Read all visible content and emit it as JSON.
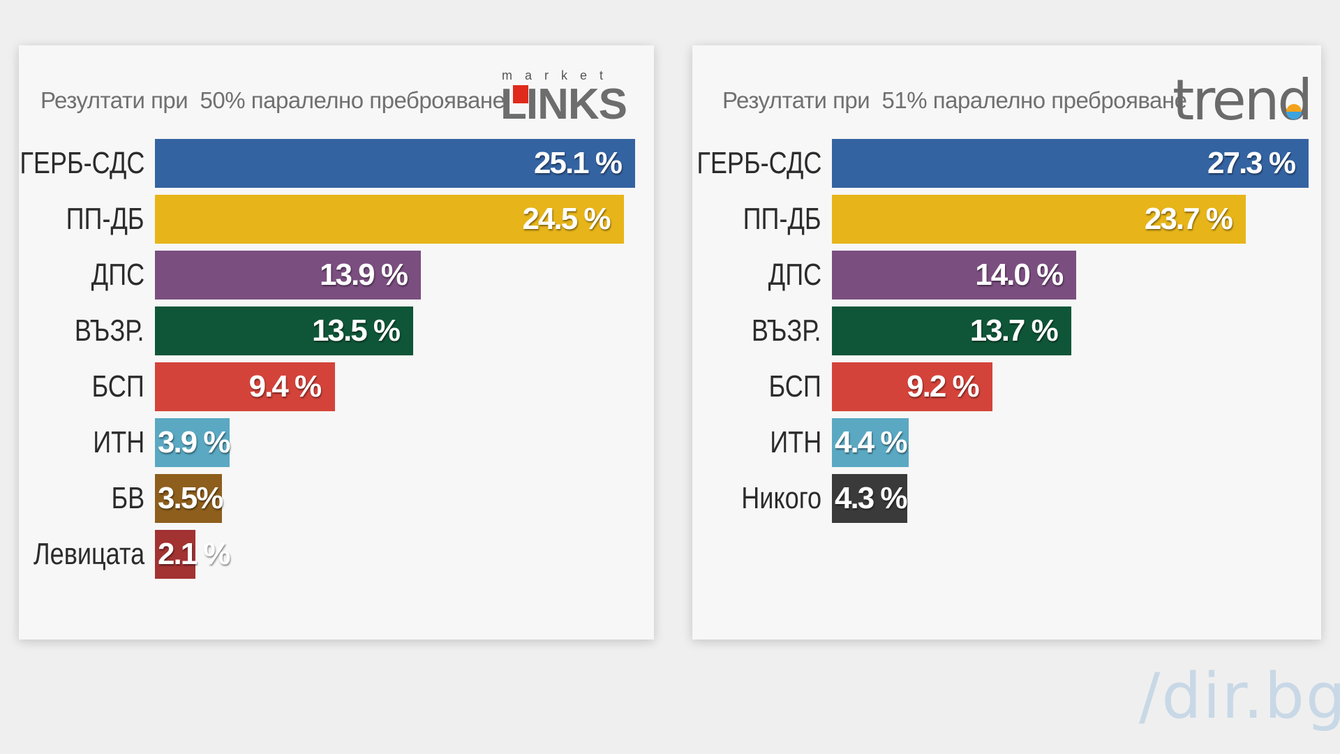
{
  "chart_data": [
    {
      "type": "bar",
      "orientation": "horizontal",
      "subtitle": "Резултати при  50% паралелно преброяване",
      "logo": "market LINKS",
      "categories": [
        "ГЕРБ-СДС",
        "ПП-ДБ",
        "ДПС",
        "ВЪЗР.",
        "БСП",
        "ИТН",
        "БВ",
        "Левицата"
      ],
      "values": [
        25.1,
        24.5,
        13.9,
        13.5,
        9.4,
        3.9,
        3.5,
        2.1
      ],
      "value_labels": [
        "25.1 %",
        "24.5 %",
        "13.9 %",
        "13.5 %",
        "9.4 %",
        "3.9 %",
        "3.5%",
        "2.1 %"
      ],
      "colors": [
        "#3463a2",
        "#e7b519",
        "#7b4e80",
        "#0f5638",
        "#d4433a",
        "#5aa8c2",
        "#8d5e1c",
        "#a33232"
      ],
      "xlim": [
        0,
        25.1
      ]
    },
    {
      "type": "bar",
      "orientation": "horizontal",
      "subtitle": "Резултати при  51% паралелно преброяване",
      "logo": "trend",
      "categories": [
        "ГЕРБ-СДС",
        "ПП-ДБ",
        "ДПС",
        "ВЪЗР.",
        "БСП",
        "ИТН",
        "Никого"
      ],
      "values": [
        27.3,
        23.7,
        14.0,
        13.7,
        9.2,
        4.4,
        4.3
      ],
      "value_labels": [
        "27.3 %",
        "23.7 %",
        "14.0 %",
        "13.7 %",
        "9.2 %",
        "4.4 %",
        "4.3 %"
      ],
      "colors": [
        "#3463a2",
        "#e7b519",
        "#7b4e80",
        "#0f5638",
        "#d4433a",
        "#5aa8c2",
        "#3a3a3a"
      ],
      "xlim": [
        0,
        27.3
      ]
    }
  ],
  "logos": {
    "links_market": "market",
    "links_word": "LINKS",
    "trend_word": "trend"
  },
  "watermark": "/dir.bg"
}
